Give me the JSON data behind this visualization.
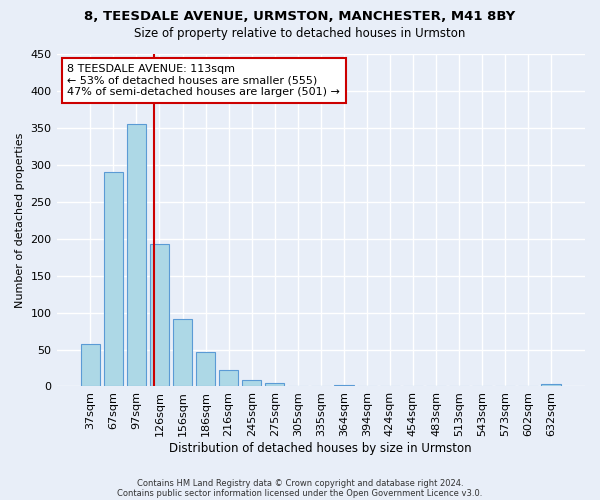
{
  "title": "8, TEESDALE AVENUE, URMSTON, MANCHESTER, M41 8BY",
  "subtitle": "Size of property relative to detached houses in Urmston",
  "xlabel": "Distribution of detached houses by size in Urmston",
  "ylabel": "Number of detached properties",
  "bar_labels": [
    "37sqm",
    "67sqm",
    "97sqm",
    "126sqm",
    "156sqm",
    "186sqm",
    "216sqm",
    "245sqm",
    "275sqm",
    "305sqm",
    "335sqm",
    "364sqm",
    "394sqm",
    "424sqm",
    "454sqm",
    "483sqm",
    "513sqm",
    "543sqm",
    "573sqm",
    "602sqm",
    "632sqm"
  ],
  "bar_values": [
    58,
    290,
    355,
    193,
    91,
    46,
    22,
    9,
    5,
    0,
    0,
    2,
    0,
    0,
    0,
    0,
    0,
    0,
    0,
    0,
    3
  ],
  "bar_color": "#add8e6",
  "bar_edge_color": "#5b9bd5",
  "vline_x": 2.77,
  "vline_color": "#cc0000",
  "annotation_title": "8 TEESDALE AVENUE: 113sqm",
  "annotation_line1": "← 53% of detached houses are smaller (555)",
  "annotation_line2": "47% of semi-detached houses are larger (501) →",
  "ylim": [
    0,
    450
  ],
  "yticks": [
    0,
    50,
    100,
    150,
    200,
    250,
    300,
    350,
    400,
    450
  ],
  "footer1": "Contains HM Land Registry data © Crown copyright and database right 2024.",
  "footer2": "Contains public sector information licensed under the Open Government Licence v3.0.",
  "bg_color": "#e8eef8"
}
